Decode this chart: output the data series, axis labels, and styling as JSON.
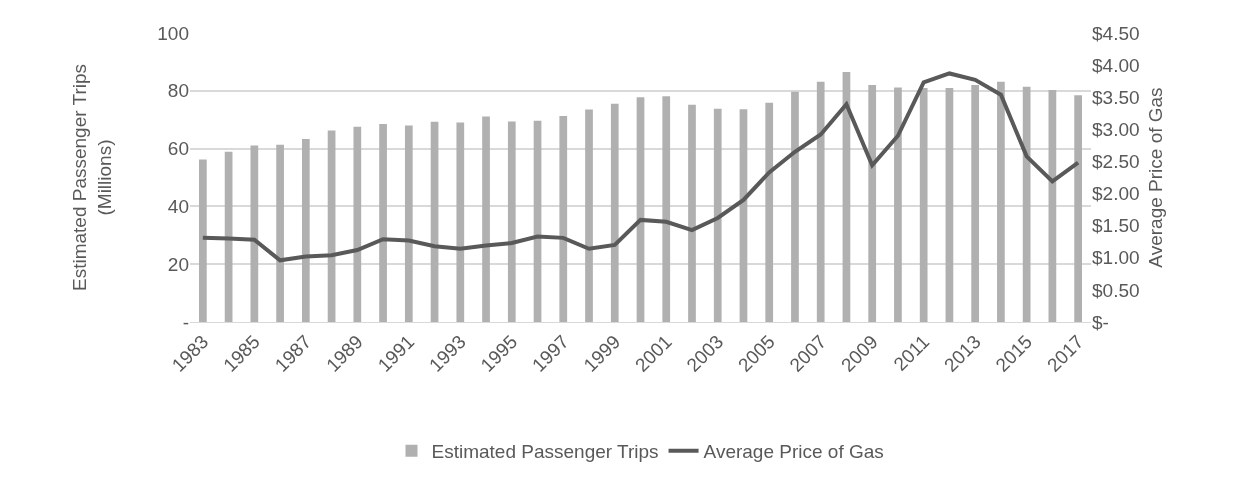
{
  "chart_data": {
    "type": "bar",
    "categories": [
      "1983",
      null,
      "1985",
      null,
      "1987",
      null,
      "1989",
      null,
      "1991",
      null,
      "1993",
      null,
      "1995",
      null,
      "1997",
      null,
      "1999",
      null,
      "2001",
      null,
      "2003",
      null,
      "2005",
      null,
      "2007",
      null,
      "2009",
      null,
      "2011",
      null,
      "2013",
      null,
      "2015",
      null,
      "2017"
    ],
    "ylabel": "Estimated Passenger Trips\n(Millions)",
    "y2label": "Average Price of Gas",
    "ylim": [
      0,
      100
    ],
    "yticks": [
      {
        "value": 0,
        "label": "-"
      },
      20,
      40,
      60,
      80,
      100
    ],
    "y2lim": [
      0,
      4.5
    ],
    "y2ticks": [
      {
        "value": 0,
        "label": "$-"
      },
      {
        "value": 0.5,
        "label": "$0.50"
      },
      {
        "value": 1,
        "label": "$1.00"
      },
      {
        "value": 1.5,
        "label": "$1.50"
      },
      {
        "value": 2,
        "label": "$2.00"
      },
      {
        "value": 2.5,
        "label": "$2.50"
      },
      {
        "value": 3,
        "label": "$3.00"
      },
      {
        "value": 3.5,
        "label": "$3.50"
      },
      {
        "value": 4,
        "label": "$4.00"
      },
      {
        "value": 4.5,
        "label": "$4.50"
      }
    ],
    "grid": "y",
    "legend": "bottom",
    "series": [
      {
        "name": "Estimated Passenger Trips",
        "color": "#b0b0b0",
        "values": [
          56.2,
          58.9,
          61.1,
          61.3,
          63.3,
          66.3,
          67.6,
          68.5,
          68.0,
          69.3,
          69.0,
          71.1,
          69.4,
          69.6,
          71.3,
          73.5,
          75.5,
          77.8,
          78.1,
          75.2,
          73.8,
          73.6,
          75.9,
          79.7,
          83.1,
          86.5,
          82.0,
          81.1,
          81.0,
          81.0,
          82.0,
          83.1,
          81.4,
          80.3,
          78.5
        ]
      },
      {
        "name": "Average Price of Gas",
        "type": "line",
        "axis": "y2",
        "color": "#595959",
        "line_style": "solid",
        "marker": "none",
        "values": [
          1.31,
          1.3,
          1.28,
          0.96,
          1.02,
          1.04,
          1.12,
          1.29,
          1.27,
          1.18,
          1.14,
          1.19,
          1.23,
          1.33,
          1.31,
          1.14,
          1.2,
          1.59,
          1.56,
          1.43,
          1.62,
          1.9,
          2.33,
          2.65,
          2.92,
          3.39,
          2.44,
          2.9,
          3.73,
          3.87,
          3.77,
          3.54,
          2.58,
          2.19,
          2.48
        ]
      }
    ]
  }
}
